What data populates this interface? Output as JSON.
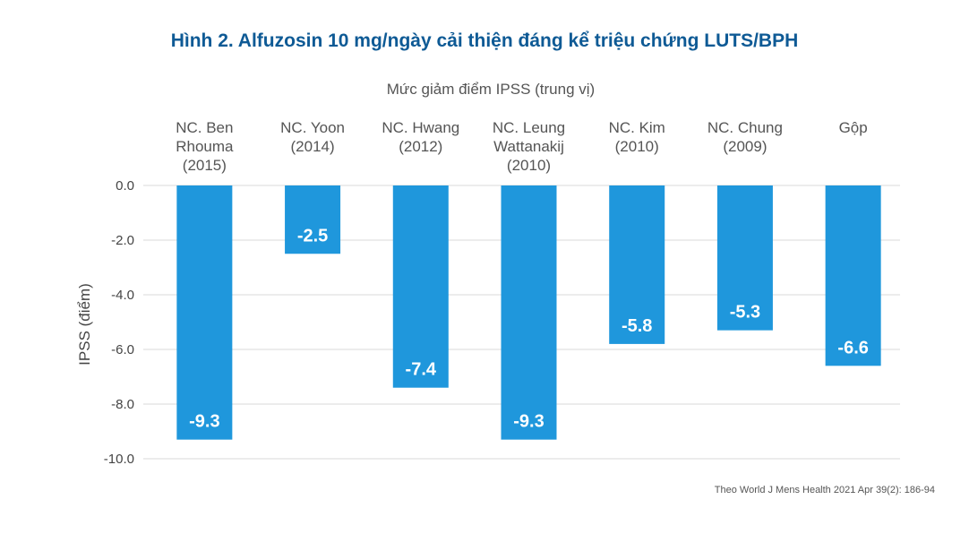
{
  "chart_data": {
    "type": "bar",
    "title": "Hình 2. Alfuzosin 10 mg/ngày cải thiện đáng kể triệu chứng LUTS/BPH",
    "subtitle": "Mức giảm điểm IPSS (trung vị)",
    "ylabel": "IPSS (điểm)",
    "xlabel": "",
    "categories": [
      [
        "NC. Ben",
        "Rhouma",
        "(2015)"
      ],
      [
        "NC. Yoon",
        "(2014)"
      ],
      [
        "NC. Hwang",
        "(2012)"
      ],
      [
        "NC. Leung",
        "Wattanakij",
        "(2010)"
      ],
      [
        "NC. Kim",
        "(2010)"
      ],
      [
        "NC. Chung",
        "(2009)"
      ],
      [
        "Gộp"
      ]
    ],
    "values": [
      -9.3,
      -2.5,
      -7.4,
      -9.3,
      -5.8,
      -5.3,
      -6.6
    ],
    "data_labels": [
      "-9.3",
      "-2.5",
      "-7.4",
      "-9.3",
      "-5.8",
      "-5.3",
      "-6.6"
    ],
    "yticks": [
      "0.0",
      "-2.0",
      "-4.0",
      "-6.0",
      "-8.0",
      "-10.0"
    ],
    "ylim": [
      -10,
      0
    ],
    "grid": true,
    "bar_color": "#1f97dc",
    "title_color": "#0e5a95",
    "source": "Theo World J Mens Health 2021 Apr 39(2): 186-94"
  }
}
